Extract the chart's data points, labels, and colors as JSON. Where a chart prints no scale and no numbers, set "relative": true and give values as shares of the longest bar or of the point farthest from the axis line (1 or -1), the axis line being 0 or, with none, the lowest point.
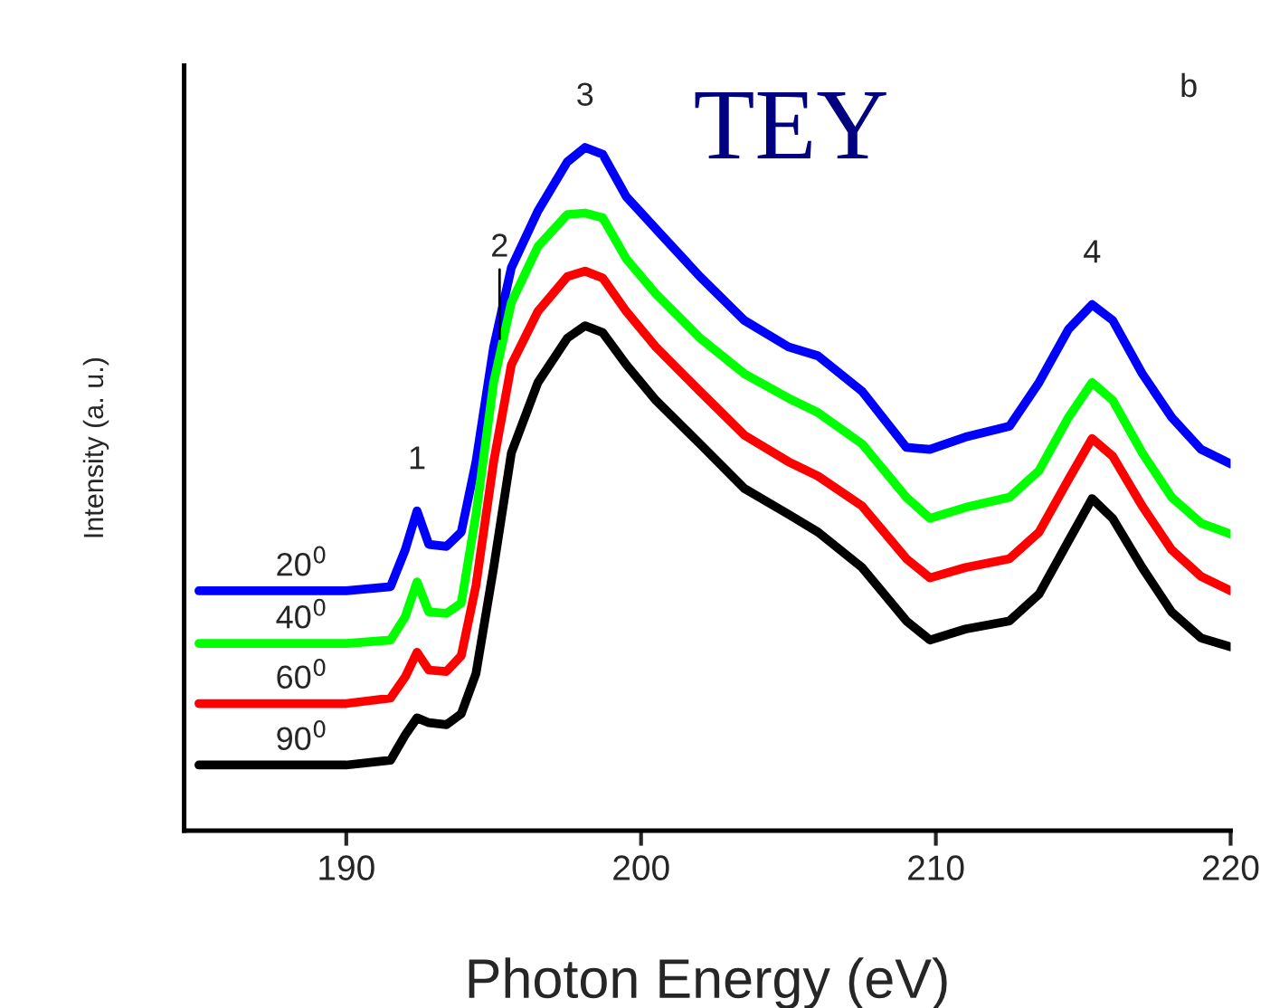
{
  "chart_data": {
    "type": "line",
    "title": "TEY",
    "xlabel": "Photon Energy (eV)",
    "ylabel": "Intensity (a. u.)",
    "relative": true,
    "x": [
      185,
      190,
      191.5,
      192,
      192.4,
      192.8,
      193.4,
      193.9,
      194.4,
      195,
      195.6,
      196.5,
      197.5,
      198.1,
      198.7,
      199.5,
      200.5,
      202,
      203.5,
      205,
      206,
      207.5,
      209,
      209.8,
      211,
      212.5,
      213.5,
      214.5,
      215.3,
      216,
      217,
      218,
      219,
      220
    ],
    "xlim": [
      184.5,
      220
    ],
    "xticks": [
      190,
      200,
      210,
      220
    ],
    "tick_labels": "x",
    "grid": false,
    "legend": false,
    "line_style": "solid",
    "marker": "none",
    "series": [
      {
        "name": "20$^{0}$",
        "color": "#0000ff",
        "values": [
          0.351,
          0.351,
          0.357,
          0.411,
          0.468,
          0.419,
          0.416,
          0.437,
          0.54,
          0.708,
          0.824,
          0.907,
          0.979,
          1.0,
          0.99,
          0.928,
          0.881,
          0.811,
          0.747,
          0.708,
          0.695,
          0.643,
          0.561,
          0.558,
          0.576,
          0.592,
          0.656,
          0.734,
          0.77,
          0.747,
          0.669,
          0.605,
          0.558,
          0.537
        ]
      },
      {
        "name": "40$^{0}$",
        "color": "#00ff00",
        "values": [
          0.274,
          0.274,
          0.279,
          0.313,
          0.364,
          0.32,
          0.318,
          0.333,
          0.463,
          0.656,
          0.773,
          0.855,
          0.902,
          0.904,
          0.897,
          0.837,
          0.786,
          0.721,
          0.669,
          0.633,
          0.612,
          0.566,
          0.488,
          0.457,
          0.473,
          0.488,
          0.527,
          0.605,
          0.656,
          0.63,
          0.553,
          0.488,
          0.45,
          0.434
        ]
      },
      {
        "name": "60$^{0}$",
        "color": "#ff0000",
        "values": [
          0.186,
          0.186,
          0.194,
          0.225,
          0.261,
          0.235,
          0.233,
          0.256,
          0.359,
          0.54,
          0.682,
          0.76,
          0.811,
          0.819,
          0.809,
          0.76,
          0.708,
          0.643,
          0.579,
          0.54,
          0.519,
          0.475,
          0.398,
          0.37,
          0.385,
          0.398,
          0.437,
          0.514,
          0.574,
          0.548,
          0.475,
          0.411,
          0.372,
          0.351
        ]
      },
      {
        "name": "90$^{0}$",
        "color": "#000000",
        "values": [
          0.096,
          0.096,
          0.103,
          0.14,
          0.165,
          0.158,
          0.155,
          0.171,
          0.23,
          0.385,
          0.553,
          0.656,
          0.721,
          0.739,
          0.729,
          0.682,
          0.63,
          0.566,
          0.501,
          0.463,
          0.437,
          0.385,
          0.307,
          0.279,
          0.295,
          0.307,
          0.346,
          0.424,
          0.486,
          0.457,
          0.385,
          0.32,
          0.282,
          0.269
        ]
      }
    ],
    "annotations": [
      {
        "text": "1",
        "x": 192.4,
        "y": 0.468
      },
      {
        "text": "2",
        "x": 195.2,
        "y": 0.72
      },
      {
        "text": "3",
        "x": 198.1,
        "y": 1.0
      },
      {
        "text": "4",
        "x": 215.3,
        "y": 0.77
      },
      "b"
    ]
  }
}
